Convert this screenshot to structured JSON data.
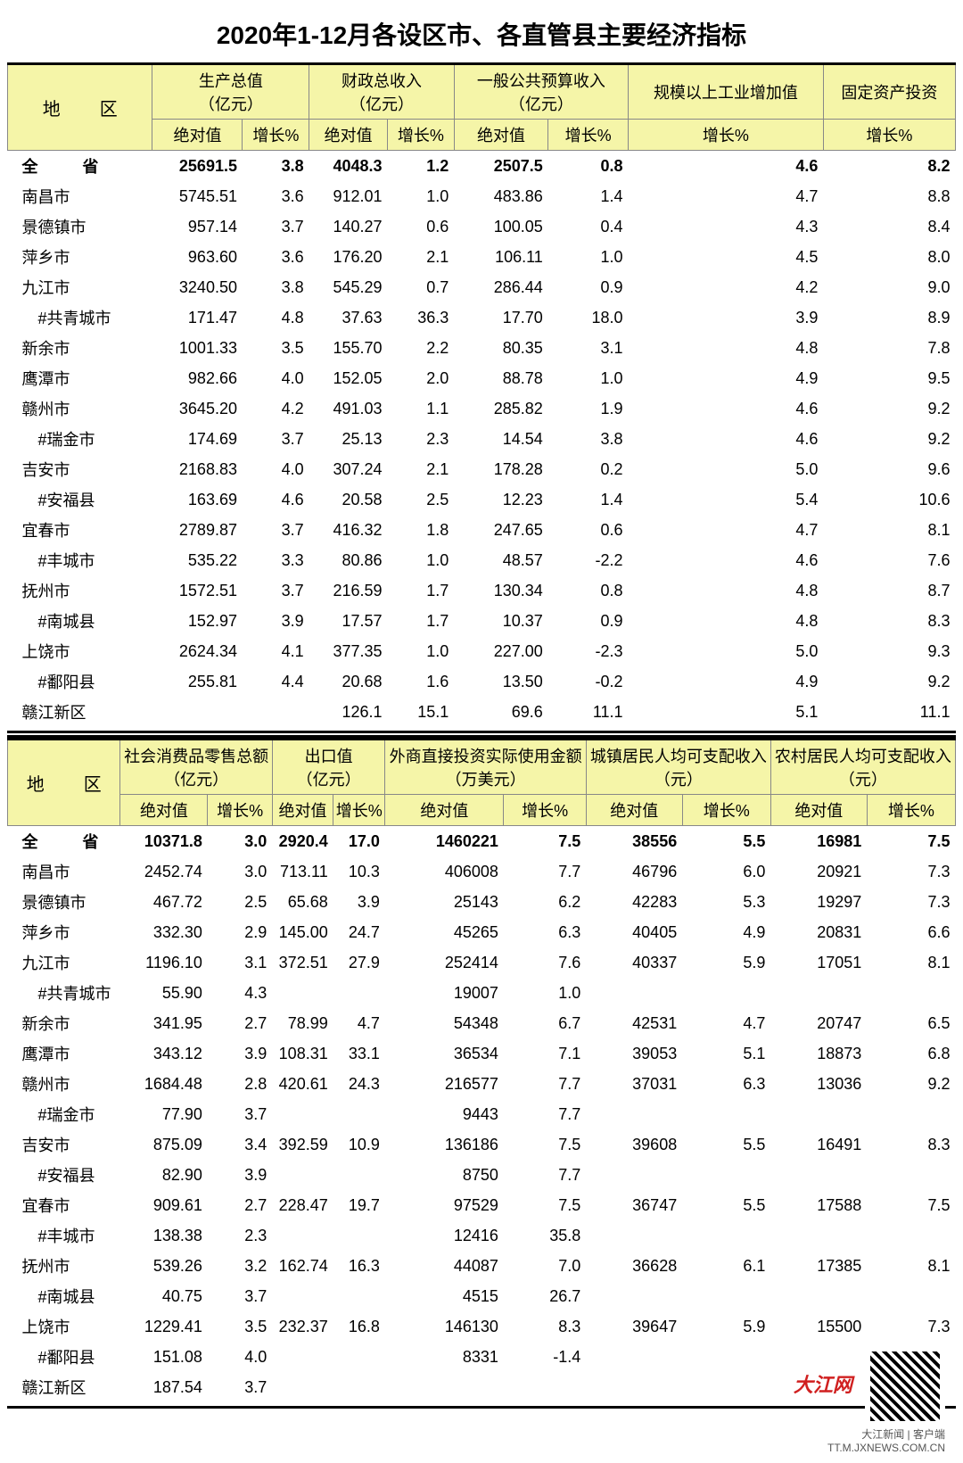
{
  "title": "2020年1-12月各设区市、各直管县主要经济指标",
  "labels": {
    "region": "地　区",
    "abs": "绝对值",
    "growth": "增长%"
  },
  "table1": {
    "headers": [
      {
        "t": "生产总值",
        "u": "（亿元）",
        "cols": [
          "abs",
          "growth"
        ]
      },
      {
        "t": "财政总收入",
        "u": "（亿元）",
        "cols": [
          "abs",
          "growth"
        ]
      },
      {
        "t": "一般公共预算收入",
        "u": "（亿元）",
        "cols": [
          "abs",
          "growth"
        ]
      },
      {
        "t": "规模以上工业增加值",
        "u": "",
        "cols": [
          "growth"
        ]
      },
      {
        "t": "固定资产投资",
        "u": "",
        "cols": [
          "growth"
        ]
      }
    ],
    "rows": [
      {
        "name": "全　省",
        "total": true,
        "v": [
          "25691.5",
          "3.8",
          "4048.3",
          "1.2",
          "2507.5",
          "0.8",
          "4.6",
          "8.2"
        ]
      },
      {
        "name": "南昌市",
        "v": [
          "5745.51",
          "3.6",
          "912.01",
          "1.0",
          "483.86",
          "1.4",
          "4.7",
          "8.8"
        ]
      },
      {
        "name": "景德镇市",
        "v": [
          "957.14",
          "3.7",
          "140.27",
          "0.6",
          "100.05",
          "0.4",
          "4.3",
          "8.4"
        ]
      },
      {
        "name": "萍乡市",
        "v": [
          "963.60",
          "3.6",
          "176.20",
          "2.1",
          "106.11",
          "1.0",
          "4.5",
          "8.0"
        ]
      },
      {
        "name": "九江市",
        "v": [
          "3240.50",
          "3.8",
          "545.29",
          "0.7",
          "286.44",
          "0.9",
          "4.2",
          "9.0"
        ]
      },
      {
        "name": "#共青城市",
        "indent": true,
        "v": [
          "171.47",
          "4.8",
          "37.63",
          "36.3",
          "17.70",
          "18.0",
          "3.9",
          "8.9"
        ]
      },
      {
        "name": "新余市",
        "v": [
          "1001.33",
          "3.5",
          "155.70",
          "2.2",
          "80.35",
          "3.1",
          "4.8",
          "7.8"
        ]
      },
      {
        "name": "鹰潭市",
        "v": [
          "982.66",
          "4.0",
          "152.05",
          "2.0",
          "88.78",
          "1.0",
          "4.9",
          "9.5"
        ]
      },
      {
        "name": "赣州市",
        "v": [
          "3645.20",
          "4.2",
          "491.03",
          "1.1",
          "285.82",
          "1.9",
          "4.6",
          "9.2"
        ]
      },
      {
        "name": "#瑞金市",
        "indent": true,
        "v": [
          "174.69",
          "3.7",
          "25.13",
          "2.3",
          "14.54",
          "3.8",
          "4.6",
          "9.2"
        ]
      },
      {
        "name": "吉安市",
        "v": [
          "2168.83",
          "4.0",
          "307.24",
          "2.1",
          "178.28",
          "0.2",
          "5.0",
          "9.6"
        ]
      },
      {
        "name": "#安福县",
        "indent": true,
        "v": [
          "163.69",
          "4.6",
          "20.58",
          "2.5",
          "12.23",
          "1.4",
          "5.4",
          "10.6"
        ]
      },
      {
        "name": "宜春市",
        "v": [
          "2789.87",
          "3.7",
          "416.32",
          "1.8",
          "247.65",
          "0.6",
          "4.7",
          "8.1"
        ]
      },
      {
        "name": "#丰城市",
        "indent": true,
        "v": [
          "535.22",
          "3.3",
          "80.86",
          "1.0",
          "48.57",
          "-2.2",
          "4.6",
          "7.6"
        ]
      },
      {
        "name": "抚州市",
        "v": [
          "1572.51",
          "3.7",
          "216.59",
          "1.7",
          "130.34",
          "0.8",
          "4.8",
          "8.7"
        ]
      },
      {
        "name": "#南城县",
        "indent": true,
        "v": [
          "152.97",
          "3.9",
          "17.57",
          "1.7",
          "10.37",
          "0.9",
          "4.8",
          "8.3"
        ]
      },
      {
        "name": "上饶市",
        "v": [
          "2624.34",
          "4.1",
          "377.35",
          "1.0",
          "227.00",
          "-2.3",
          "5.0",
          "9.3"
        ]
      },
      {
        "name": "#鄱阳县",
        "indent": true,
        "v": [
          "255.81",
          "4.4",
          "20.68",
          "1.6",
          "13.50",
          "-0.2",
          "4.9",
          "9.2"
        ]
      },
      {
        "name": "赣江新区",
        "v": [
          "",
          "",
          "126.1",
          "15.1",
          "69.6",
          "11.1",
          "5.1",
          "11.1"
        ]
      }
    ]
  },
  "table2": {
    "headers": [
      {
        "t": "社会消费品零售总额",
        "u": "（亿元）",
        "cols": [
          "abs",
          "growth"
        ]
      },
      {
        "t": "出口值",
        "u": "（亿元）",
        "cols": [
          "abs",
          "growth"
        ]
      },
      {
        "t": "外商直接投资实际使用金额",
        "u": "（万美元）",
        "cols": [
          "abs",
          "growth"
        ]
      },
      {
        "t": "城镇居民人均可支配收入",
        "u": "（元）",
        "cols": [
          "abs",
          "growth"
        ]
      },
      {
        "t": "农村居民人均可支配收入",
        "u": "（元）",
        "cols": [
          "abs",
          "growth"
        ]
      }
    ],
    "rows": [
      {
        "name": "全　省",
        "total": true,
        "v": [
          "10371.8",
          "3.0",
          "2920.4",
          "17.0",
          "1460221",
          "7.5",
          "38556",
          "5.5",
          "16981",
          "7.5"
        ]
      },
      {
        "name": "南昌市",
        "v": [
          "2452.74",
          "3.0",
          "713.11",
          "10.3",
          "406008",
          "7.7",
          "46796",
          "6.0",
          "20921",
          "7.3"
        ]
      },
      {
        "name": "景德镇市",
        "v": [
          "467.72",
          "2.5",
          "65.68",
          "3.9",
          "25143",
          "6.2",
          "42283",
          "5.3",
          "19297",
          "7.3"
        ]
      },
      {
        "name": "萍乡市",
        "v": [
          "332.30",
          "2.9",
          "145.00",
          "24.7",
          "45265",
          "6.3",
          "40405",
          "4.9",
          "20831",
          "6.6"
        ]
      },
      {
        "name": "九江市",
        "v": [
          "1196.10",
          "3.1",
          "372.51",
          "27.9",
          "252414",
          "7.6",
          "40337",
          "5.9",
          "17051",
          "8.1"
        ]
      },
      {
        "name": "#共青城市",
        "indent": true,
        "v": [
          "55.90",
          "4.3",
          "",
          "",
          "19007",
          "1.0",
          "",
          "",
          "",
          ""
        ]
      },
      {
        "name": "新余市",
        "v": [
          "341.95",
          "2.7",
          "78.99",
          "4.7",
          "54348",
          "6.7",
          "42531",
          "4.7",
          "20747",
          "6.5"
        ]
      },
      {
        "name": "鹰潭市",
        "v": [
          "343.12",
          "3.9",
          "108.31",
          "33.1",
          "36534",
          "7.1",
          "39053",
          "5.1",
          "18873",
          "6.8"
        ]
      },
      {
        "name": "赣州市",
        "v": [
          "1684.48",
          "2.8",
          "420.61",
          "24.3",
          "216577",
          "7.7",
          "37031",
          "6.3",
          "13036",
          "9.2"
        ]
      },
      {
        "name": "#瑞金市",
        "indent": true,
        "v": [
          "77.90",
          "3.7",
          "",
          "",
          "9443",
          "7.7",
          "",
          "",
          "",
          ""
        ]
      },
      {
        "name": "吉安市",
        "v": [
          "875.09",
          "3.4",
          "392.59",
          "10.9",
          "136186",
          "7.5",
          "39608",
          "5.5",
          "16491",
          "8.3"
        ]
      },
      {
        "name": "#安福县",
        "indent": true,
        "v": [
          "82.90",
          "3.9",
          "",
          "",
          "8750",
          "7.7",
          "",
          "",
          "",
          ""
        ]
      },
      {
        "name": "宜春市",
        "v": [
          "909.61",
          "2.7",
          "228.47",
          "19.7",
          "97529",
          "7.5",
          "36747",
          "5.5",
          "17588",
          "7.5"
        ]
      },
      {
        "name": "#丰城市",
        "indent": true,
        "v": [
          "138.38",
          "2.3",
          "",
          "",
          "12416",
          "35.8",
          "",
          "",
          "",
          ""
        ]
      },
      {
        "name": "抚州市",
        "v": [
          "539.26",
          "3.2",
          "162.74",
          "16.3",
          "44087",
          "7.0",
          "36628",
          "6.1",
          "17385",
          "8.1"
        ]
      },
      {
        "name": "#南城县",
        "indent": true,
        "v": [
          "40.75",
          "3.7",
          "",
          "",
          "4515",
          "26.7",
          "",
          "",
          "",
          ""
        ]
      },
      {
        "name": "上饶市",
        "v": [
          "1229.41",
          "3.5",
          "232.37",
          "16.8",
          "146130",
          "8.3",
          "39647",
          "5.9",
          "15500",
          "7.3"
        ]
      },
      {
        "name": "#鄱阳县",
        "indent": true,
        "v": [
          "151.08",
          "4.0",
          "",
          "",
          "8331",
          "-1.4",
          "",
          "",
          "",
          ""
        ]
      },
      {
        "name": "赣江新区",
        "v": [
          "187.54",
          "3.7",
          "",
          "",
          "",
          "",
          "",
          "",
          "",
          ""
        ]
      }
    ]
  },
  "watermark": {
    "brand": "大江网",
    "sub": "大江新闻 | 客户端",
    "url": "TT.M.JXNEWS.COM.CN"
  }
}
